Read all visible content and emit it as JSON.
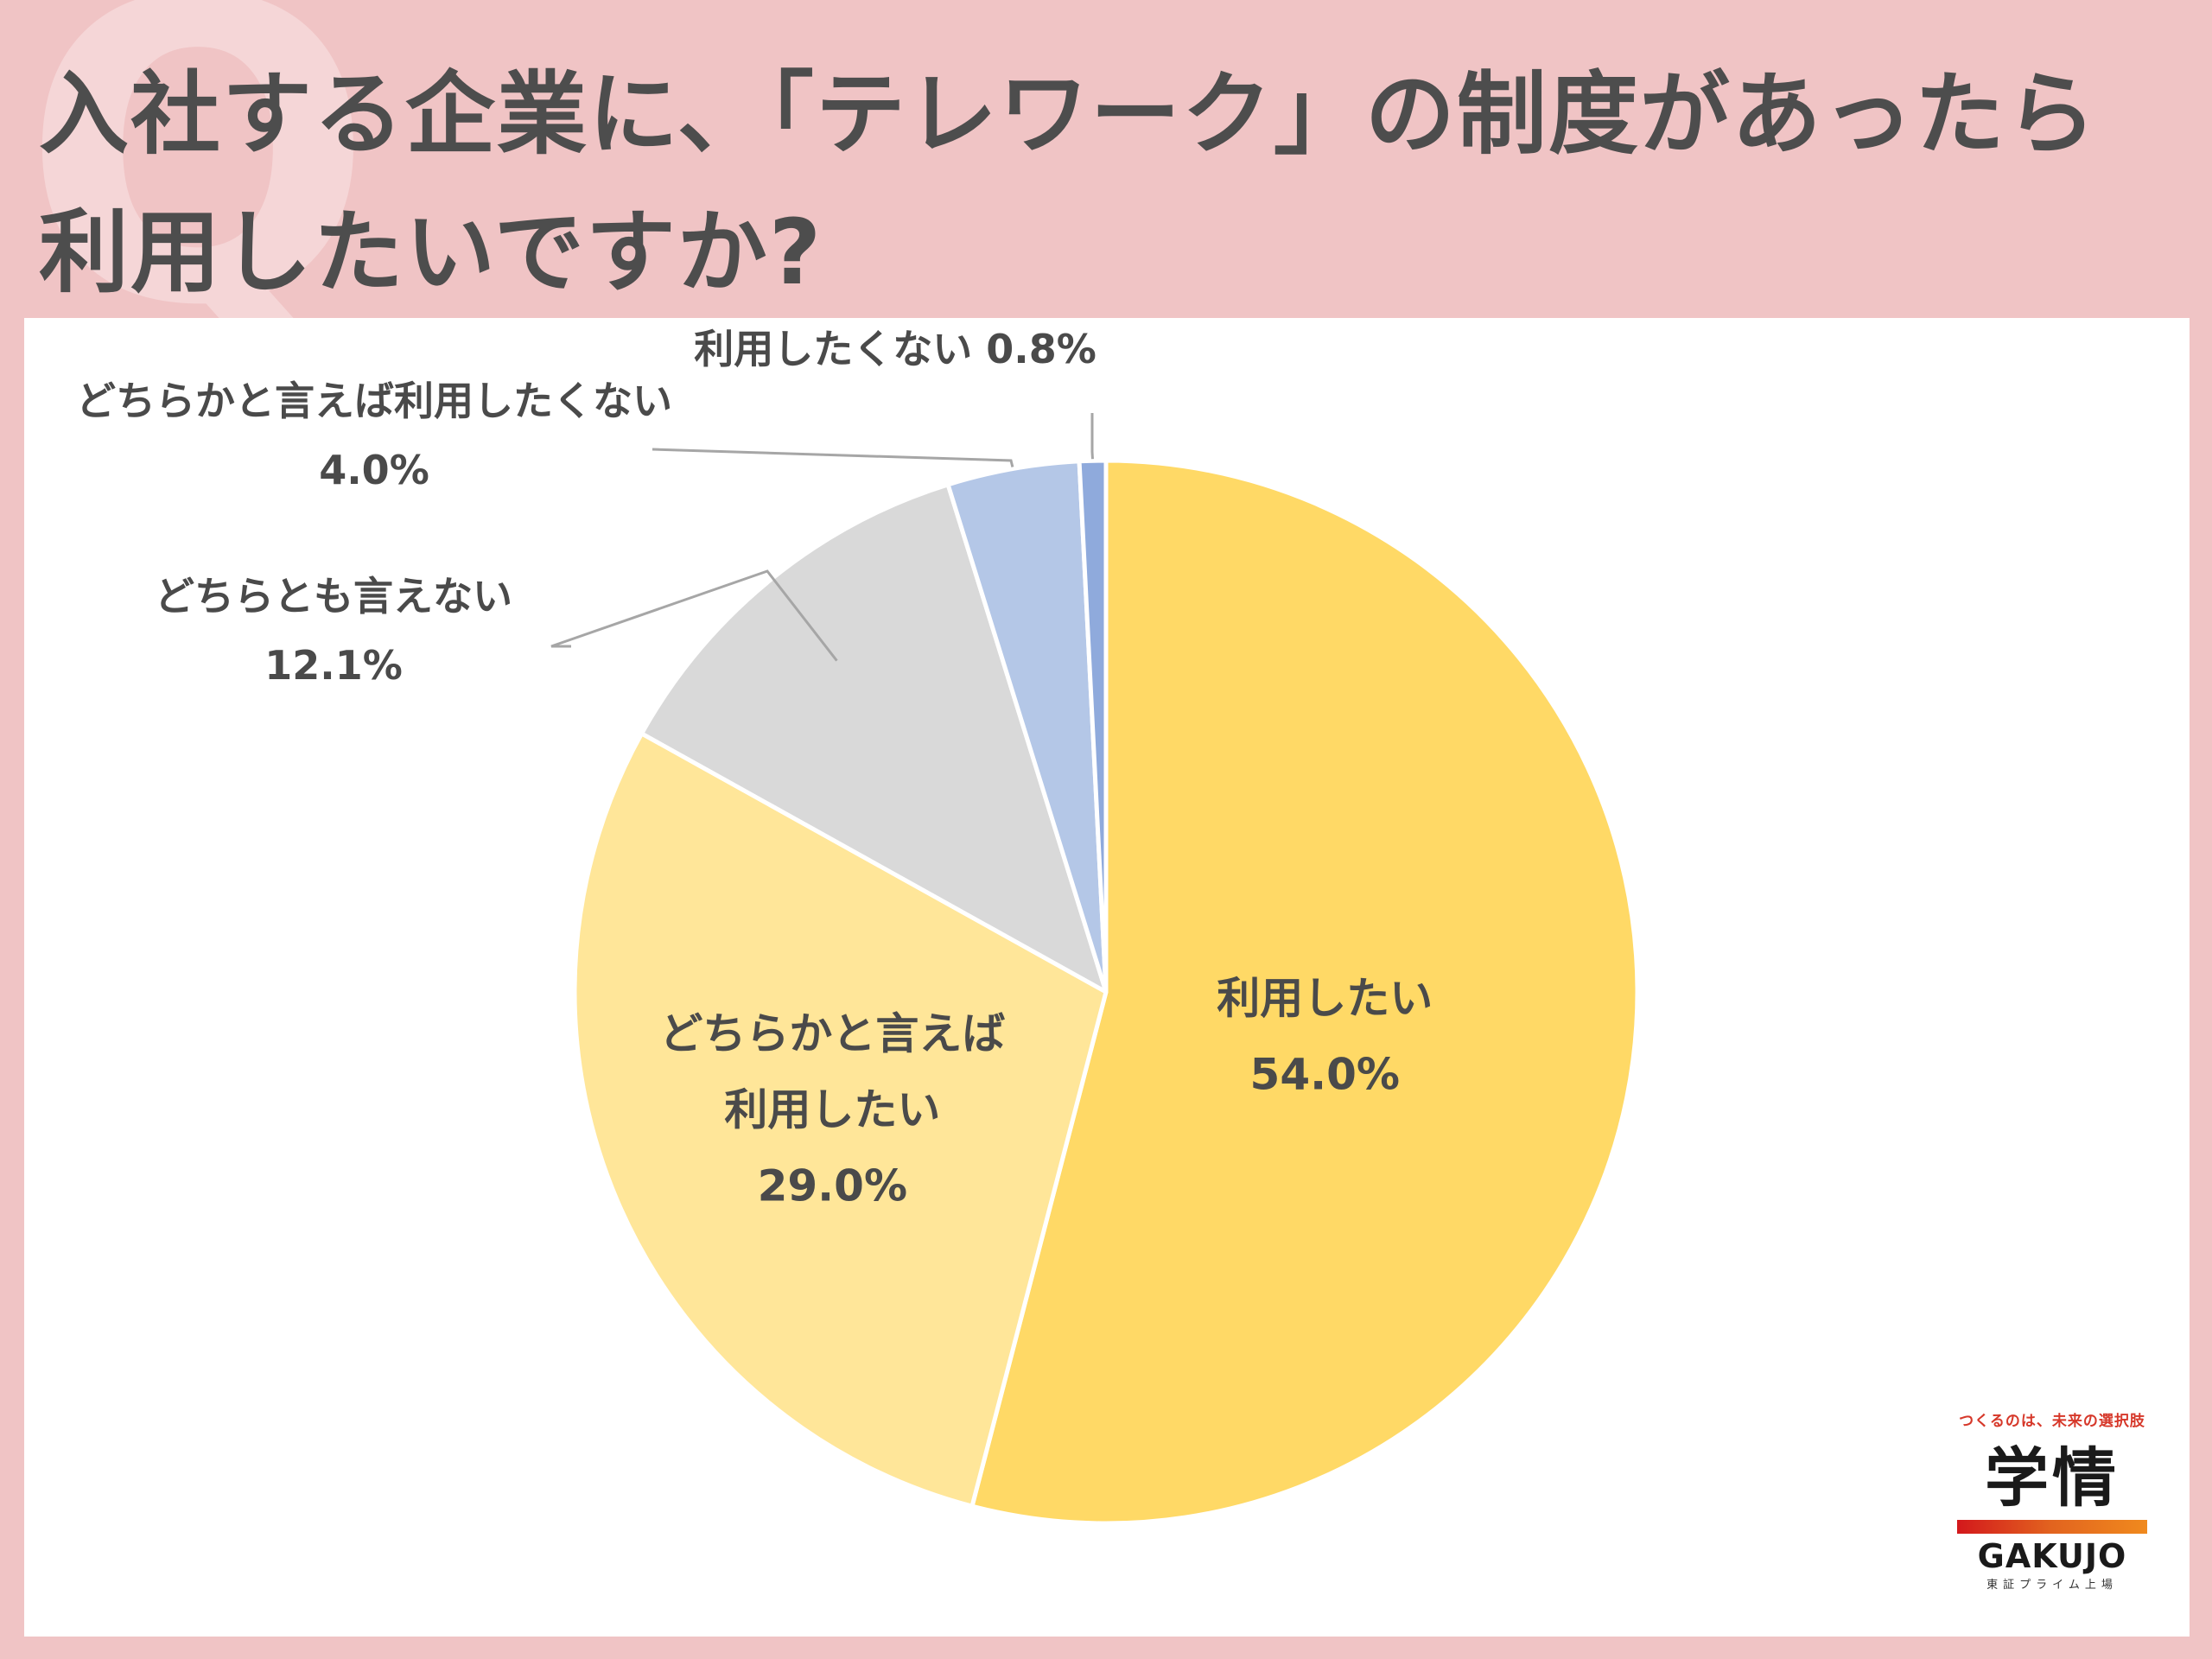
{
  "title": {
    "line1": "入社する企業に、「テレワーク」の制度があったら",
    "line2": "利用したいですか?"
  },
  "colors": {
    "background": "#f0c4c5",
    "title_text": "#4d4d4d",
    "label_text": "#4a4a4a"
  },
  "chart_data": {
    "type": "pie",
    "slices": [
      {
        "label": "利用したい",
        "value": 54.0,
        "display": "54.0%",
        "color": "#ffd966"
      },
      {
        "label": "どちらかと言えば利用したい",
        "display_lines": [
          "どちらかと言えば",
          "利用したい"
        ],
        "value": 29.0,
        "display": "29.0%",
        "color": "#ffe699"
      },
      {
        "label": "どちらとも言えない",
        "value": 12.1,
        "display": "12.1%",
        "color": "#d9d9d9"
      },
      {
        "label": "どちらかと言えば利用したくない",
        "value": 4.0,
        "display": "4.0%",
        "color": "#b4c7e7"
      },
      {
        "label": "利用したくない",
        "value": 0.8,
        "display": "0.8%",
        "color": "#8faadc"
      }
    ]
  },
  "logo": {
    "tagline": "つくるのは、未来の選択肢",
    "brand": "学情",
    "latin": "GAKUJO",
    "market": "東証プライム上場"
  }
}
